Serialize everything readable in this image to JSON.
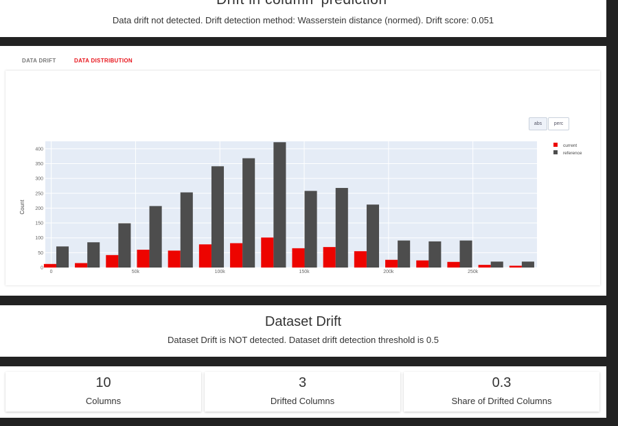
{
  "header": {
    "title": "Drift in column 'prediction'",
    "subtitle": "Data drift not detected. Drift detection method: Wasserstein distance (normed). Drift score: 0.051"
  },
  "tabs": [
    {
      "label": "DATA DRIFT",
      "active": false
    },
    {
      "label": "DATA DISTRIBUTION",
      "active": true
    }
  ],
  "mode_buttons": {
    "abs": "abs",
    "perc": "perc"
  },
  "colors": {
    "current": "#ed0400",
    "reference": "#4d4d4d",
    "accent": "#e8141b",
    "plot_bg": "#e5ecf6"
  },
  "chart_data": {
    "type": "bar",
    "ylabel": "Count",
    "xlim": [
      -3500,
      288000
    ],
    "ylim": [
      0,
      425
    ],
    "y_ticks": [
      0,
      50,
      100,
      150,
      200,
      250,
      300,
      350,
      400
    ],
    "x_ticks": [
      0,
      50000,
      100000,
      150000,
      200000,
      250000
    ],
    "x_tick_labels": [
      "0",
      "50k",
      "100k",
      "150k",
      "200k",
      "250k"
    ],
    "categories": [
      3000,
      21400,
      39800,
      58200,
      76600,
      95000,
      113400,
      131800,
      150200,
      168600,
      187000,
      205400,
      223800,
      242200,
      260600,
      279000
    ],
    "series": [
      {
        "name": "current",
        "values": [
          12,
          15,
          42,
          60,
          57,
          78,
          82,
          101,
          65,
          69,
          55,
          26,
          24,
          19,
          9,
          6
        ]
      },
      {
        "name": "reference",
        "values": [
          71,
          85,
          149,
          207,
          253,
          341,
          368,
          422,
          258,
          268,
          212,
          91,
          88,
          91,
          20,
          20
        ]
      }
    ]
  },
  "dataset": {
    "title": "Dataset Drift",
    "subtitle": "Dataset Drift is NOT detected. Dataset drift detection threshold is 0.5"
  },
  "metrics": [
    {
      "value": "10",
      "label": "Columns"
    },
    {
      "value": "3",
      "label": "Drifted Columns"
    },
    {
      "value": "0.3",
      "label": "Share of Drifted Columns"
    }
  ]
}
